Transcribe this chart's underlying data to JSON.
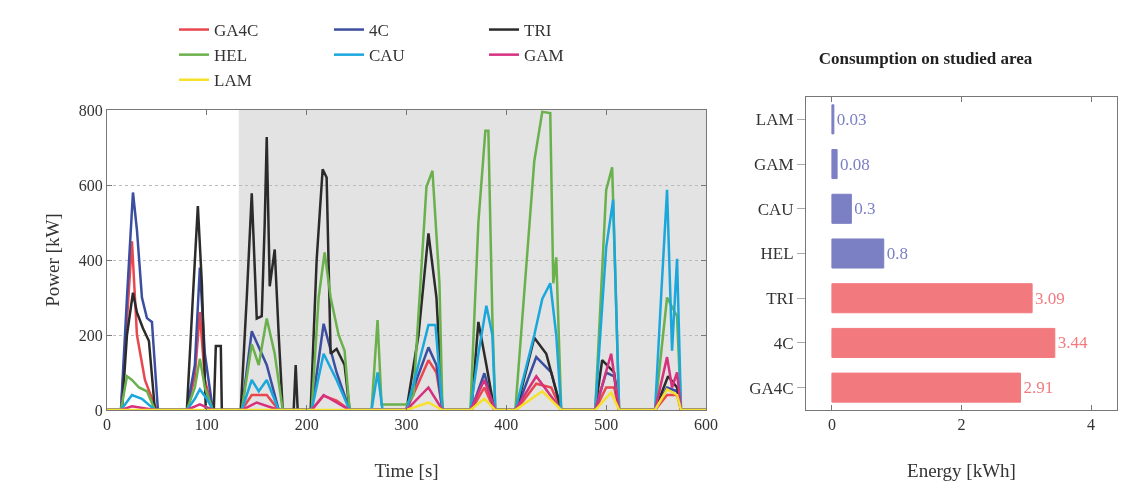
{
  "chart_data": [
    {
      "type": "line",
      "xlabel": "Time [s]",
      "ylabel": "Power [kW]",
      "xlim": [
        0,
        600
      ],
      "ylim": [
        0,
        800
      ],
      "xticks": [
        0,
        100,
        200,
        300,
        400,
        500,
        600
      ],
      "yticks": [
        0,
        200,
        400,
        600,
        800
      ],
      "grid": "y",
      "legend": "top",
      "bands": [
        {
          "axis": "x",
          "from": 132,
          "to": 600,
          "color": "#e3e3e3"
        }
      ],
      "series": [
        {
          "name": "GA4C",
          "color": "#e8474f",
          "x": [
            0,
            14,
            20,
            25,
            30,
            38,
            48,
            52,
            80,
            88,
            93,
            98,
            106,
            135,
            145,
            160,
            172,
            205,
            217,
            230,
            243,
            300,
            310,
            322,
            330,
            336,
            365,
            378,
            388,
            410,
            430,
            445,
            455,
            489,
            500,
            508,
            513,
            549,
            561,
            571,
            575,
            600
          ],
          "values": [
            0,
            0,
            240,
            450,
            200,
            80,
            10,
            0,
            0,
            90,
            261,
            80,
            0,
            0,
            40,
            40,
            0,
            0,
            38,
            25,
            0,
            0,
            60,
            133,
            100,
            0,
            0,
            60,
            0,
            0,
            70,
            60,
            0,
            0,
            60,
            60,
            0,
            0,
            40,
            40,
            0,
            0
          ]
        },
        {
          "name": "4C",
          "color": "#3b4ea0",
          "x": [
            0,
            14,
            20,
            26,
            30,
            35,
            40,
            45,
            51,
            80,
            88,
            93,
            98,
            106,
            135,
            145,
            160,
            172,
            205,
            217,
            230,
            243,
            300,
            310,
            322,
            330,
            336,
            365,
            378,
            388,
            410,
            430,
            445,
            455,
            489,
            500,
            508,
            513,
            549,
            561,
            571,
            575,
            600
          ],
          "values": [
            0,
            0,
            300,
            580,
            480,
            300,
            245,
            235,
            0,
            0,
            120,
            380,
            150,
            0,
            0,
            210,
            120,
            0,
            0,
            230,
            100,
            0,
            0,
            80,
            167,
            120,
            0,
            0,
            98,
            0,
            0,
            141,
            100,
            0,
            0,
            100,
            90,
            0,
            0,
            60,
            50,
            0,
            0
          ]
        },
        {
          "name": "TRI",
          "color": "#2b2b2b",
          "x": [
            0,
            15,
            20,
            26,
            30,
            36,
            42,
            48,
            80,
            86,
            91,
            95,
            99,
            107,
            109,
            114,
            115,
            134,
            140,
            145,
            150,
            155,
            158,
            160,
            163,
            168,
            172,
            176,
            187,
            189,
            191,
            204,
            210,
            216,
            220,
            224,
            230,
            238,
            243,
            300,
            312,
            322,
            330,
            336,
            365,
            372,
            380,
            388,
            410,
            428,
            440,
            455,
            489,
            496,
            508,
            513,
            549,
            562,
            571,
            575,
            600
          ],
          "values": [
            0,
            0,
            200,
            313,
            260,
            218,
            184,
            0,
            0,
            300,
            544,
            338,
            0,
            0,
            171,
            171,
            0,
            0,
            300,
            578,
            244,
            250,
            500,
            728,
            330,
            428,
            200,
            0,
            0,
            120,
            0,
            0,
            400,
            642,
            620,
            150,
            163,
            120,
            0,
            0,
            200,
            471,
            300,
            0,
            0,
            235,
            120,
            0,
            0,
            193,
            150,
            0,
            0,
            133,
            100,
            0,
            0,
            90,
            60,
            0,
            0
          ]
        },
        {
          "name": "HEL",
          "color": "#6ab04c",
          "x": [
            0,
            14,
            20,
            25,
            32,
            40,
            48,
            52,
            80,
            88,
            93,
            98,
            106,
            135,
            145,
            152,
            160,
            168,
            176,
            205,
            212,
            218,
            224,
            232,
            238,
            243,
            265,
            271,
            275,
            300,
            307,
            320,
            326,
            333,
            336,
            364,
            372,
            379,
            382,
            386,
            389,
            409,
            428,
            436,
            444,
            447,
            450,
            455,
            489,
            500,
            506,
            513,
            549,
            561,
            571,
            575,
            600
          ],
          "values": [
            0,
            0,
            90,
            80,
            60,
            50,
            0,
            0,
            0,
            60,
            137,
            60,
            0,
            0,
            175,
            120,
            244,
            150,
            0,
            0,
            300,
            420,
            300,
            200,
            158,
            0,
            0,
            240,
            15,
            15,
            40,
            595,
            638,
            338,
            0,
            0,
            500,
            745,
            745,
            244,
            0,
            0,
            664,
            795,
            792,
            338,
            407,
            0,
            0,
            587,
            647,
            0,
            0,
            300,
            250,
            0,
            0
          ]
        },
        {
          "name": "CAU",
          "color": "#1aa7dc",
          "x": [
            0,
            14,
            25,
            35,
            48,
            80,
            88,
            93,
            100,
            106,
            135,
            145,
            152,
            160,
            172,
            205,
            217,
            230,
            243,
            265,
            271,
            276,
            300,
            310,
            322,
            329,
            336,
            364,
            372,
            380,
            386,
            389,
            409,
            428,
            436,
            444,
            450,
            455,
            489,
            500,
            507,
            513,
            549,
            555,
            561,
            566,
            571,
            575,
            600
          ],
          "values": [
            0,
            0,
            40,
            30,
            0,
            0,
            30,
            55,
            30,
            0,
            0,
            80,
            50,
            80,
            0,
            0,
            150,
            80,
            0,
            0,
            100,
            0,
            0,
            100,
            227,
            227,
            0,
            0,
            150,
            278,
            200,
            0,
            0,
            200,
            296,
            338,
            200,
            0,
            0,
            433,
            561,
            0,
            0,
            300,
            587,
            158,
            403,
            0,
            0
          ]
        },
        {
          "name": "GAM",
          "color": "#d6307e",
          "x": [
            0,
            14,
            25,
            48,
            80,
            93,
            106,
            135,
            150,
            172,
            205,
            217,
            243,
            300,
            322,
            336,
            364,
            378,
            389,
            409,
            430,
            455,
            489,
            505,
            513,
            549,
            561,
            566,
            571,
            575,
            600
          ],
          "values": [
            0,
            0,
            10,
            0,
            0,
            15,
            0,
            0,
            20,
            0,
            0,
            40,
            0,
            0,
            60,
            0,
            0,
            80,
            0,
            0,
            90,
            0,
            0,
            150,
            0,
            0,
            141,
            60,
            100,
            0,
            0
          ]
        },
        {
          "name": "LAM",
          "color": "#f5e12a",
          "x": [
            0,
            300,
            322,
            336,
            364,
            378,
            389,
            409,
            436,
            455,
            489,
            505,
            513,
            549,
            561,
            571,
            575,
            600
          ],
          "values": [
            0,
            0,
            20,
            0,
            0,
            30,
            0,
            0,
            50,
            0,
            0,
            47,
            0,
            0,
            55,
            40,
            0,
            0
          ]
        }
      ]
    },
    {
      "type": "bar",
      "orientation": "horizontal",
      "title": "Consumption on studied area",
      "xlabel": "Energy [kWh]",
      "categories": [
        "LAM",
        "GAM",
        "CAU",
        "HEL",
        "TRI",
        "4C",
        "GA4C"
      ],
      "values": [
        0.03,
        0.08,
        0.3,
        0.8,
        3.09,
        3.44,
        2.91
      ],
      "colors": [
        "#7b7fc4",
        "#7b7fc4",
        "#7b7fc4",
        "#7b7fc4",
        "#f27a7e",
        "#f27a7e",
        "#f27a7e"
      ],
      "xlim": [
        -0.4,
        4.4
      ],
      "xticks": [
        0,
        2,
        4
      ],
      "data_labels": true
    }
  ]
}
